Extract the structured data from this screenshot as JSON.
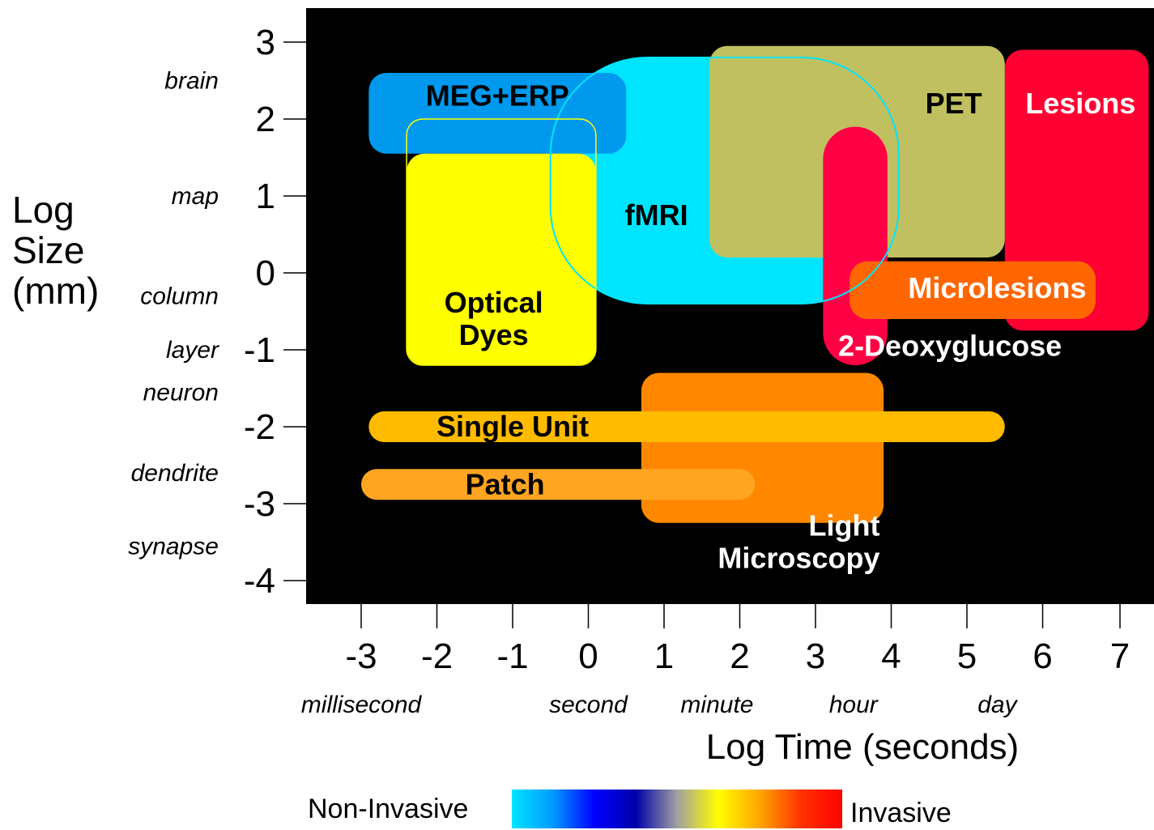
{
  "chart_data": {
    "type": "region",
    "xlabel": "Log Time (seconds)",
    "ylabel_lines": [
      "Log",
      "Size",
      "(mm)"
    ],
    "x_ticks": [
      -3,
      -2,
      -1,
      0,
      1,
      2,
      3,
      4,
      5,
      6,
      7
    ],
    "y_ticks": [
      3,
      2,
      1,
      0,
      -1,
      -2,
      -3,
      -4
    ],
    "xlim": [
      -4.0,
      7.5
    ],
    "ylim": [
      -4.35,
      3.4
    ],
    "time_labels": [
      {
        "text": "millisecond",
        "x": -3.0
      },
      {
        "text": "second",
        "x": 0.0
      },
      {
        "text": "minute",
        "x": 1.7
      },
      {
        "text": "hour",
        "x": 3.5
      },
      {
        "text": "day",
        "x": 5.4
      }
    ],
    "size_labels": [
      {
        "text": "brain",
        "y": 2.5
      },
      {
        "text": "map",
        "y": 1.0
      },
      {
        "text": "column",
        "y": -0.3
      },
      {
        "text": "layer",
        "y": -1.0
      },
      {
        "text": "neuron",
        "y": -1.55
      },
      {
        "text": "dendrite",
        "y": -2.6
      },
      {
        "text": "synapse",
        "y": -3.55
      }
    ],
    "regions": [
      {
        "name": "Lesions",
        "x": [
          5.5,
          7.4
        ],
        "y": [
          -0.75,
          2.9
        ],
        "color": "#ff0033",
        "label_x": 6.5,
        "label_y": 2.2,
        "label_color": "#ffffff"
      },
      {
        "name": "Light Microscopy",
        "x": [
          0.7,
          3.9
        ],
        "y": [
          -3.25,
          -1.3
        ],
        "color": "#ff8800",
        "label_x": 3.85,
        "label_y": -3.5,
        "label_color": "#ffffff"
      },
      {
        "name": "fMRI",
        "x": [
          -0.5,
          4.1
        ],
        "y": [
          -0.4,
          2.8
        ],
        "color": "#00e5ff",
        "label_x": 0.9,
        "label_y": 0.75,
        "label_color": "#000000"
      },
      {
        "name": "MEG+ERP",
        "x": [
          -2.9,
          0.5
        ],
        "y": [
          1.55,
          2.6
        ],
        "color": "#0099ee",
        "label_x": -1.2,
        "label_y": 2.3,
        "label_color": "#000000"
      },
      {
        "name": "Optical Dyes",
        "x": [
          -2.4,
          0.1
        ],
        "y": [
          -1.2,
          1.55
        ],
        "color": "#ffff00",
        "label_x": -1.25,
        "label_y": -0.6,
        "label_color": "#000000"
      },
      {
        "name": "PET",
        "x": [
          1.6,
          5.5
        ],
        "y": [
          0.2,
          2.95
        ],
        "color": "#c0c060",
        "label_x": 5.2,
        "label_y": 2.2,
        "label_color": "#000000"
      },
      {
        "name": "2-Deoxyglucose",
        "x": [
          3.1,
          3.95
        ],
        "y": [
          -1.2,
          1.9
        ],
        "color": "#ff0044",
        "label_x": 4.0,
        "label_y": -0.95,
        "label_color": "#ffffff"
      },
      {
        "name": "Microlesions",
        "x": [
          3.45,
          6.7
        ],
        "y": [
          -0.6,
          0.15
        ],
        "color": "#ff6600",
        "label_x": 5.4,
        "label_y": -0.2,
        "label_color": "#ffffff"
      },
      {
        "name": "Single Unit",
        "x": [
          -2.9,
          5.5
        ],
        "y": [
          -2.2,
          -1.8
        ],
        "color": "#ffbb00",
        "label_x": -1.0,
        "label_y": -2.0,
        "label_color": "#000000"
      },
      {
        "name": "Patch",
        "x": [
          -3.0,
          2.2
        ],
        "y": [
          -2.95,
          -2.55
        ],
        "color": "#ffa522",
        "label_x": -1.1,
        "label_y": -2.75,
        "label_color": "#000000"
      }
    ],
    "fmri_outline": {
      "x": [
        -0.5,
        4.1
      ],
      "y": [
        -0.4,
        2.8
      ],
      "color": "#00e5ff"
    },
    "optical_outline": {
      "x": [
        -2.4,
        0.1
      ],
      "y": [
        -1.2,
        2.0
      ],
      "color": "#ffff00"
    },
    "legend": {
      "left_label": "Non-Invasive",
      "right_label": "Invasive",
      "gradient": [
        "#00e5ff",
        "#0099ff",
        "#0000ff",
        "#0000aa",
        "#a0a0a0",
        "#ffff00",
        "#ffa500",
        "#ff3300",
        "#ff0000"
      ]
    },
    "plot_background": "#000000"
  }
}
